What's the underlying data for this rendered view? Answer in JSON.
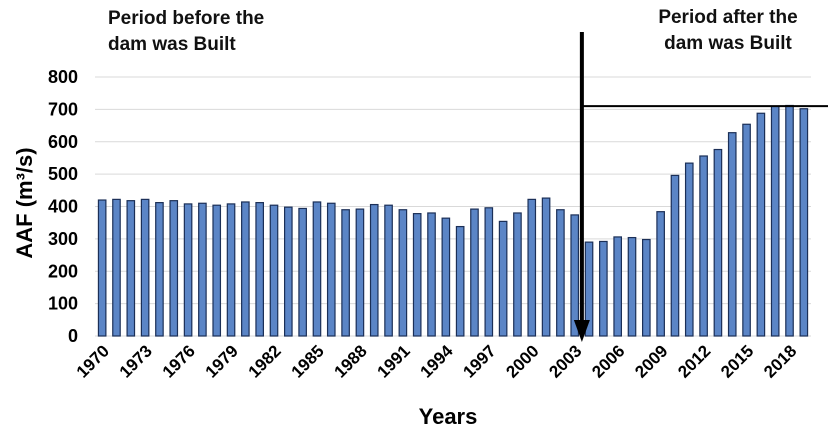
{
  "chart_data": {
    "type": "bar",
    "ylabel": "AAF (m³/s)",
    "xlabel": "Years",
    "ylim": [
      0,
      800
    ],
    "yticks": [
      0,
      100,
      200,
      300,
      400,
      500,
      600,
      700,
      800
    ],
    "grid": true,
    "categories": [
      1970,
      1971,
      1972,
      1973,
      1974,
      1975,
      1976,
      1977,
      1978,
      1979,
      1980,
      1981,
      1982,
      1983,
      1984,
      1985,
      1986,
      1987,
      1988,
      1989,
      1990,
      1991,
      1992,
      1993,
      1994,
      1995,
      1996,
      1997,
      1998,
      1999,
      2000,
      2001,
      2002,
      2003,
      2004,
      2005,
      2006,
      2007,
      2008,
      2009,
      2010,
      2011,
      2012,
      2013,
      2014,
      2015,
      2016,
      2017,
      2018,
      2019
    ],
    "tick_labels": [
      "1970",
      "1973",
      "1976",
      "1979",
      "1982",
      "1985",
      "1988",
      "1991",
      "1994",
      "1997",
      "2000",
      "2003",
      "2006",
      "2009",
      "2012",
      "2015",
      "2018"
    ],
    "values": [
      420,
      422,
      418,
      422,
      412,
      418,
      408,
      410,
      404,
      408,
      414,
      412,
      404,
      398,
      394,
      414,
      410,
      390,
      392,
      406,
      404,
      390,
      378,
      380,
      364,
      338,
      392,
      396,
      354,
      380,
      422,
      426,
      390,
      374,
      290,
      292,
      306,
      304,
      298,
      384,
      496,
      534,
      556,
      576,
      628,
      654,
      688,
      710,
      712,
      702
    ],
    "reference_line": 710,
    "annotations": {
      "before": [
        "Period before the",
        "dam was Built"
      ],
      "after": [
        "Period after the",
        "dam was Built"
      ]
    },
    "colors": {
      "bar": "#5b85c6",
      "bar_edge": "#1b2f57",
      "grid": "#d9d9d9",
      "arrow": "#000000"
    }
  }
}
